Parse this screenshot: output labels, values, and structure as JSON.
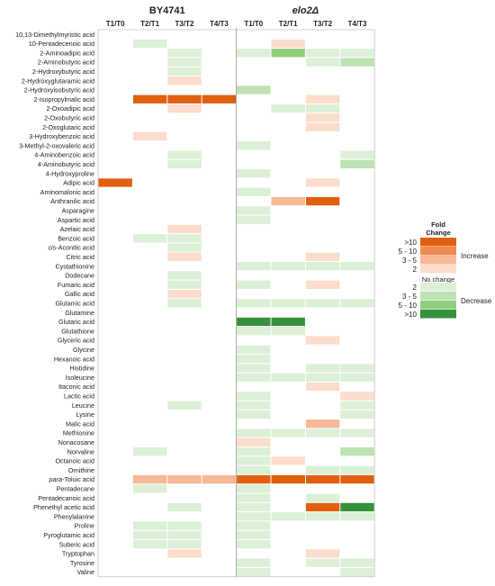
{
  "chart_data": {
    "type": "heatmap",
    "groups": [
      {
        "name": "BY4741",
        "italic": false
      },
      {
        "name": "elo2Δ",
        "italic": true
      }
    ],
    "columns": [
      "T1/T0",
      "T2/T1",
      "T3/T2",
      "T4/T3"
    ],
    "rows": [
      {
        "label": "10,13-Dimethylmyristic acid"
      },
      {
        "label": "10-Pentadecenoic acid"
      },
      {
        "label": "2-Aminoadipic acid"
      },
      {
        "label": "2-Aminobutyric acid"
      },
      {
        "label": "2-Hydroxybutyric acid"
      },
      {
        "label": "2-Hydroxyglutaramic acid"
      },
      {
        "label": "2-Hydroxyisobutyric acid"
      },
      {
        "label": "2-Isopropylmalic acid"
      },
      {
        "label": "2-Oxoadipic acid"
      },
      {
        "label": "2-Oxobutyric acid"
      },
      {
        "label": "2-Oxoglutaric acid"
      },
      {
        "label": "3-Hydroxybenzoic acid"
      },
      {
        "label": "3-Methyl-2-oxovaleric acid"
      },
      {
        "label": "4-Aminobenzoic acid"
      },
      {
        "label": "4-Aminobutyric acid"
      },
      {
        "label": "4-Hydroxyproline"
      },
      {
        "label": "Adipic acid"
      },
      {
        "label": "Aminomalonic acid"
      },
      {
        "label": "Anthranilic acid"
      },
      {
        "label": "Asparagine"
      },
      {
        "label": "Aspartic acid"
      },
      {
        "label": "Azelaic acid"
      },
      {
        "label": "Benzoic acid"
      },
      {
        "prefix": "cis",
        "label": "-Aconitic acid"
      },
      {
        "label": "Citric acid"
      },
      {
        "label": "Cystathionine"
      },
      {
        "label": "Dodecane"
      },
      {
        "label": "Fumaric acid"
      },
      {
        "label": "Gallic acid"
      },
      {
        "label": "Glutamic acid"
      },
      {
        "label": "Glutamine"
      },
      {
        "label": "Glutaric acid"
      },
      {
        "label": "Glutathione"
      },
      {
        "label": "Glyceric acid"
      },
      {
        "label": "Glycine"
      },
      {
        "label": "Hexanoic acid"
      },
      {
        "label": "Histidine"
      },
      {
        "label": "Isoleucine"
      },
      {
        "label": "Itaconic acid"
      },
      {
        "label": "Lactic acid"
      },
      {
        "label": "Leucine"
      },
      {
        "label": "Lysine"
      },
      {
        "label": "Malic acid"
      },
      {
        "label": "Methionine"
      },
      {
        "label": "Nonacosane"
      },
      {
        "label": "Norvaline"
      },
      {
        "label": "Octanoic acid"
      },
      {
        "label": "Ornithine"
      },
      {
        "prefix": "para",
        "label": "-Toluic acid"
      },
      {
        "label": "Pentadecane"
      },
      {
        "label": "Pentadecanoic acid"
      },
      {
        "label": "Phenethyl acetic acid"
      },
      {
        "label": "Phenylalanine"
      },
      {
        "label": "Proline"
      },
      {
        "label": "Pyroglutamic acid"
      },
      {
        "label": "Suberic acid"
      },
      {
        "label": "Tryptophan"
      },
      {
        "label": "Tyrosine"
      },
      {
        "label": "Valine"
      }
    ],
    "value_encoding": "positive = increase, negative = decrease, 0 = no change; 1: 2, 2: 3-5, 3: 5-10, 4: >10",
    "values": [
      [
        0,
        0,
        0,
        0,
        0,
        0,
        0,
        0
      ],
      [
        0,
        -1,
        0,
        0,
        0,
        1,
        0,
        0
      ],
      [
        0,
        0,
        -1,
        0,
        -1,
        -3,
        -1,
        -1
      ],
      [
        0,
        0,
        -1,
        0,
        0,
        0,
        -1,
        -2
      ],
      [
        0,
        0,
        -1,
        0,
        0,
        0,
        0,
        0
      ],
      [
        0,
        0,
        1,
        0,
        0,
        0,
        0,
        0
      ],
      [
        0,
        0,
        0,
        0,
        -2,
        0,
        0,
        0
      ],
      [
        0,
        4,
        4,
        4,
        0,
        0,
        1,
        0
      ],
      [
        0,
        0,
        1,
        0,
        0,
        -1,
        -1,
        0
      ],
      [
        0,
        0,
        0,
        0,
        0,
        0,
        1,
        0
      ],
      [
        0,
        0,
        0,
        0,
        0,
        0,
        1,
        0
      ],
      [
        0,
        1,
        0,
        0,
        0,
        0,
        0,
        0
      ],
      [
        0,
        0,
        0,
        0,
        -1,
        0,
        0,
        0
      ],
      [
        0,
        0,
        -1,
        0,
        0,
        0,
        0,
        -1
      ],
      [
        0,
        0,
        -1,
        0,
        0,
        0,
        0,
        -2
      ],
      [
        0,
        0,
        0,
        0,
        -1,
        0,
        0,
        0
      ],
      [
        4,
        0,
        0,
        0,
        0,
        0,
        1,
        0
      ],
      [
        0,
        0,
        0,
        0,
        -1,
        0,
        0,
        0
      ],
      [
        0,
        0,
        0,
        0,
        0,
        2,
        4,
        0
      ],
      [
        0,
        0,
        0,
        0,
        -1,
        0,
        0,
        0
      ],
      [
        0,
        0,
        0,
        0,
        -1,
        0,
        0,
        0
      ],
      [
        0,
        0,
        1,
        0,
        0,
        0,
        0,
        0
      ],
      [
        0,
        -1,
        -1,
        0,
        0,
        0,
        0,
        0
      ],
      [
        0,
        0,
        -1,
        0,
        0,
        0,
        0,
        0
      ],
      [
        0,
        0,
        1,
        0,
        0,
        0,
        1,
        0
      ],
      [
        0,
        0,
        0,
        0,
        -1,
        -1,
        -1,
        -1
      ],
      [
        0,
        0,
        -1,
        0,
        0,
        0,
        0,
        0
      ],
      [
        0,
        0,
        -1,
        0,
        -1,
        0,
        1,
        0
      ],
      [
        0,
        0,
        1,
        0,
        0,
        0,
        0,
        0
      ],
      [
        0,
        0,
        -1,
        0,
        -1,
        -1,
        -1,
        -1
      ],
      [
        0,
        0,
        0,
        0,
        0,
        0,
        0,
        0
      ],
      [
        0,
        0,
        0,
        0,
        -4,
        -4,
        0,
        0
      ],
      [
        0,
        0,
        0,
        0,
        -1,
        -1,
        0,
        0
      ],
      [
        0,
        0,
        0,
        0,
        0,
        0,
        1,
        0
      ],
      [
        0,
        0,
        0,
        0,
        -1,
        0,
        0,
        0
      ],
      [
        0,
        0,
        0,
        0,
        -1,
        0,
        0,
        0
      ],
      [
        0,
        0,
        0,
        0,
        -1,
        0,
        -1,
        -1
      ],
      [
        0,
        0,
        0,
        0,
        -1,
        -1,
        -1,
        -1
      ],
      [
        0,
        0,
        0,
        0,
        0,
        0,
        1,
        0
      ],
      [
        0,
        0,
        0,
        0,
        -1,
        0,
        0,
        1
      ],
      [
        0,
        0,
        -1,
        0,
        -1,
        0,
        0,
        -1
      ],
      [
        0,
        0,
        0,
        0,
        -1,
        0,
        0,
        -1
      ],
      [
        0,
        0,
        0,
        0,
        0,
        0,
        2,
        0
      ],
      [
        0,
        0,
        0,
        0,
        -1,
        -1,
        -1,
        -1
      ],
      [
        0,
        0,
        0,
        0,
        1,
        0,
        0,
        0
      ],
      [
        0,
        -1,
        0,
        0,
        -1,
        0,
        0,
        -2
      ],
      [
        0,
        0,
        0,
        0,
        -1,
        1,
        0,
        0
      ],
      [
        0,
        0,
        0,
        0,
        -1,
        0,
        -1,
        -1
      ],
      [
        0,
        2,
        2,
        2,
        4,
        4,
        4,
        4
      ],
      [
        0,
        -1,
        0,
        0,
        -1,
        0,
        0,
        0
      ],
      [
        0,
        0,
        0,
        0,
        -1,
        0,
        -1,
        0
      ],
      [
        0,
        0,
        -1,
        0,
        -1,
        0,
        4,
        -4
      ],
      [
        0,
        0,
        0,
        0,
        -1,
        -1,
        -1,
        -1
      ],
      [
        0,
        -1,
        -1,
        0,
        -1,
        0,
        0,
        0
      ],
      [
        0,
        -1,
        -1,
        0,
        -1,
        0,
        0,
        0
      ],
      [
        0,
        -1,
        -1,
        0,
        -1,
        0,
        0,
        0
      ],
      [
        0,
        0,
        1,
        0,
        0,
        0,
        1,
        0
      ],
      [
        0,
        0,
        0,
        0,
        -1,
        0,
        -1,
        -1
      ],
      [
        0,
        0,
        0,
        0,
        -1,
        0,
        0,
        -1
      ]
    ],
    "legend": {
      "title_line1": "Fold",
      "title_line2": "Change",
      "increase_label": "Increase",
      "decrease_label": "Decrease",
      "no_change_label": "No change",
      "increase": [
        {
          "label": ">10",
          "color": "#e1600f"
        },
        {
          "label": "5 - 10",
          "color": "#f08a4e"
        },
        {
          "label": "3 - 5",
          "color": "#f7b896"
        },
        {
          "label": "2",
          "color": "#fcdccb"
        }
      ],
      "decrease": [
        {
          "label": "2",
          "color": "#dcf0d8"
        },
        {
          "label": "3 - 5",
          "color": "#bde2b4"
        },
        {
          "label": "5 - 10",
          "color": "#8fcf80"
        },
        {
          "label": ">10",
          "color": "#36913a"
        }
      ]
    }
  }
}
